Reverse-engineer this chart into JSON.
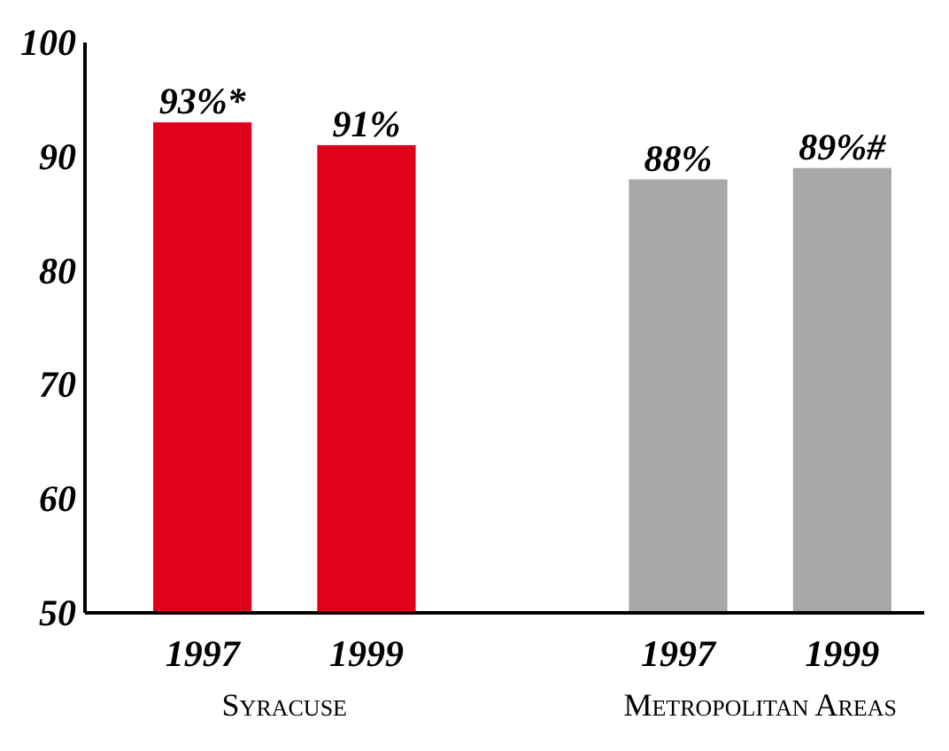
{
  "chart_data": {
    "type": "bar",
    "categories": [
      "1997",
      "1999",
      "1997",
      "1999"
    ],
    "values": [
      93,
      91,
      88,
      89
    ],
    "colors": [
      "#e0001b",
      "#e0001b",
      "#a7a9a9",
      "#a7a9a9"
    ],
    "value_labels": [
      "93%*",
      "91%",
      "88%",
      "89%#"
    ],
    "ylim": [
      50,
      100
    ],
    "yticks": [
      50,
      60,
      70,
      80,
      90,
      100
    ],
    "annotations": [
      "Syracuse",
      "Metropolitan Areas"
    ]
  }
}
